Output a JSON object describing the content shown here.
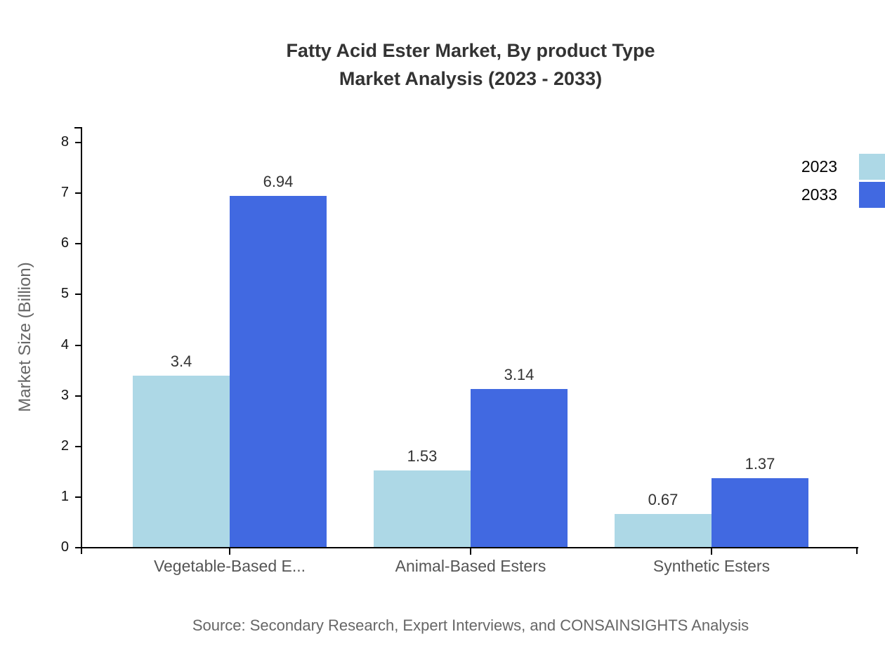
{
  "title_lines": [
    "Fatty Acid Ester Market, By product Type",
    "Market Analysis (2023 - 2033)"
  ],
  "source_note": "Source: Secondary Research, Expert Interviews, and CONSAINSIGHTS Analysis",
  "chart_data": {
    "type": "bar",
    "title": "Fatty Acid Ester Market, By product Type Market Analysis (2023 - 2033)",
    "categories": [
      "Vegetable-Based E...",
      "Animal-Based Esters",
      "Synthetic Esters"
    ],
    "series": [
      {
        "name": "2023",
        "color": "#ADD8E6",
        "values": [
          3.4,
          1.53,
          0.67
        ]
      },
      {
        "name": "2033",
        "color": "#4169E1",
        "values": [
          6.94,
          3.14,
          1.37
        ]
      }
    ],
    "value_labels": [
      [
        "3.4",
        "1.53",
        "0.67"
      ],
      [
        "6.94",
        "3.14",
        "1.37"
      ]
    ],
    "xlabel": "",
    "ylabel": "Market Size (Billion)",
    "ylim": [
      0,
      8
    ],
    "yticks": [
      0,
      1,
      2,
      3,
      4,
      5,
      6,
      7,
      8
    ],
    "grid": false,
    "legend_position": "top-right",
    "axis_color": "#000000"
  }
}
